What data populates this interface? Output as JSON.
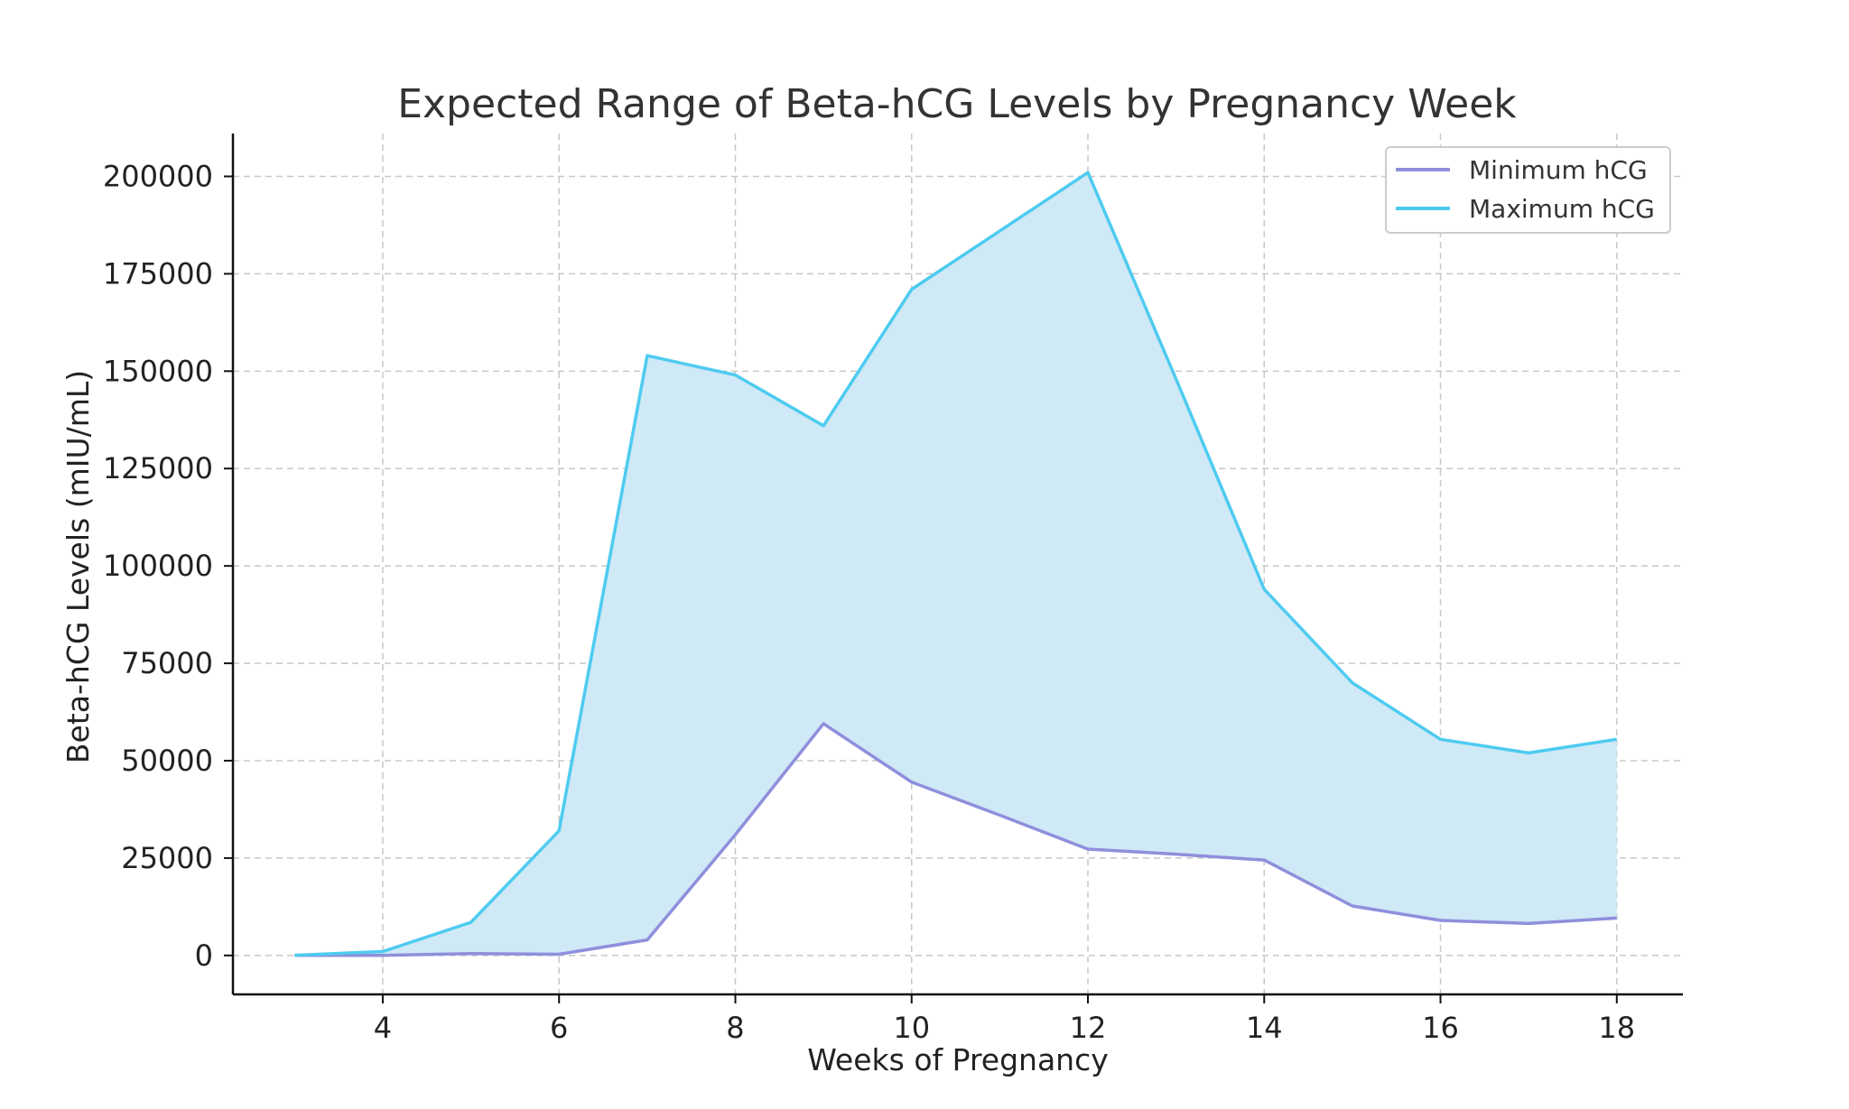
{
  "chart_data": {
    "type": "line",
    "title": "Expected Range of Beta-hCG Levels by Pregnancy Week",
    "xlabel": "Weeks of Pregnancy",
    "ylabel": "Beta-hCG Levels (mIU/mL)",
    "x": [
      3,
      4,
      5,
      6,
      7,
      8,
      9,
      10,
      11,
      12,
      13,
      14,
      15,
      16,
      17,
      18
    ],
    "xlim": [
      2.3,
      18.75
    ],
    "ylim": [
      -10000,
      211000
    ],
    "xticks": [
      4,
      6,
      8,
      10,
      12,
      14,
      16,
      18
    ],
    "yticks": [
      0,
      25000,
      50000,
      75000,
      100000,
      125000,
      150000,
      175000,
      200000
    ],
    "grid": true,
    "legend_position": "top-right",
    "fill_between": true,
    "fill_color": "#cfe9f6",
    "series": [
      {
        "name": "Minimum hCG",
        "color": "#8f8fdc",
        "values": [
          5,
          18,
          500,
          300,
          4000,
          31000,
          59500,
          44500,
          36000,
          27300,
          26000,
          24500,
          12700,
          9000,
          8200,
          9600
        ]
      },
      {
        "name": "Maximum hCG",
        "color": "#4ecbf0",
        "values": [
          50,
          1000,
          8500,
          32000,
          154000,
          149000,
          136000,
          171000,
          186000,
          201000,
          148000,
          94000,
          70000,
          55500,
          52000,
          55500
        ]
      }
    ]
  }
}
